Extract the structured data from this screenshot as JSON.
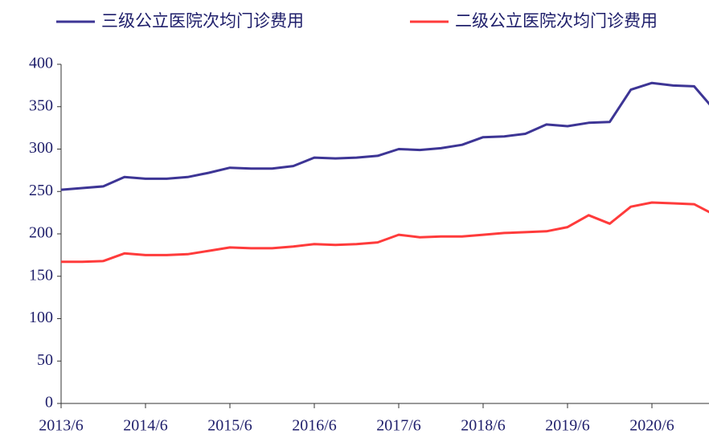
{
  "chart_data": {
    "type": "line",
    "categories": [
      "2013/6",
      null,
      null,
      null,
      "2014/6",
      null,
      null,
      null,
      "2015/6",
      null,
      null,
      null,
      "2016/6",
      null,
      null,
      null,
      "2017/6",
      null,
      null,
      null,
      "2018/6",
      null,
      null,
      null,
      "2019/6",
      null,
      null,
      null,
      "2020/6",
      null,
      null,
      null
    ],
    "series": [
      {
        "name": "三级公立医院次均门诊费用",
        "color": "#3d3595",
        "values": [
          252,
          254,
          256,
          267,
          265,
          265,
          267,
          272,
          278,
          277,
          277,
          280,
          290,
          289,
          290,
          292,
          300,
          299,
          301,
          305,
          314,
          315,
          318,
          329,
          327,
          331,
          332,
          370,
          378,
          375,
          374,
          345
        ]
      },
      {
        "name": "二级公立医院次均门诊费用",
        "color": "#ff3b3b",
        "values": [
          167,
          167,
          168,
          177,
          175,
          175,
          176,
          180,
          184,
          183,
          183,
          185,
          188,
          187,
          188,
          190,
          199,
          196,
          197,
          197,
          199,
          201,
          202,
          203,
          208,
          222,
          212,
          232,
          237,
          236,
          235,
          222
        ]
      }
    ],
    "ylim": [
      0,
      400
    ],
    "yticks": [
      0,
      50,
      100,
      150,
      200,
      250,
      300,
      350,
      400
    ],
    "grid": false,
    "legend": "top"
  }
}
